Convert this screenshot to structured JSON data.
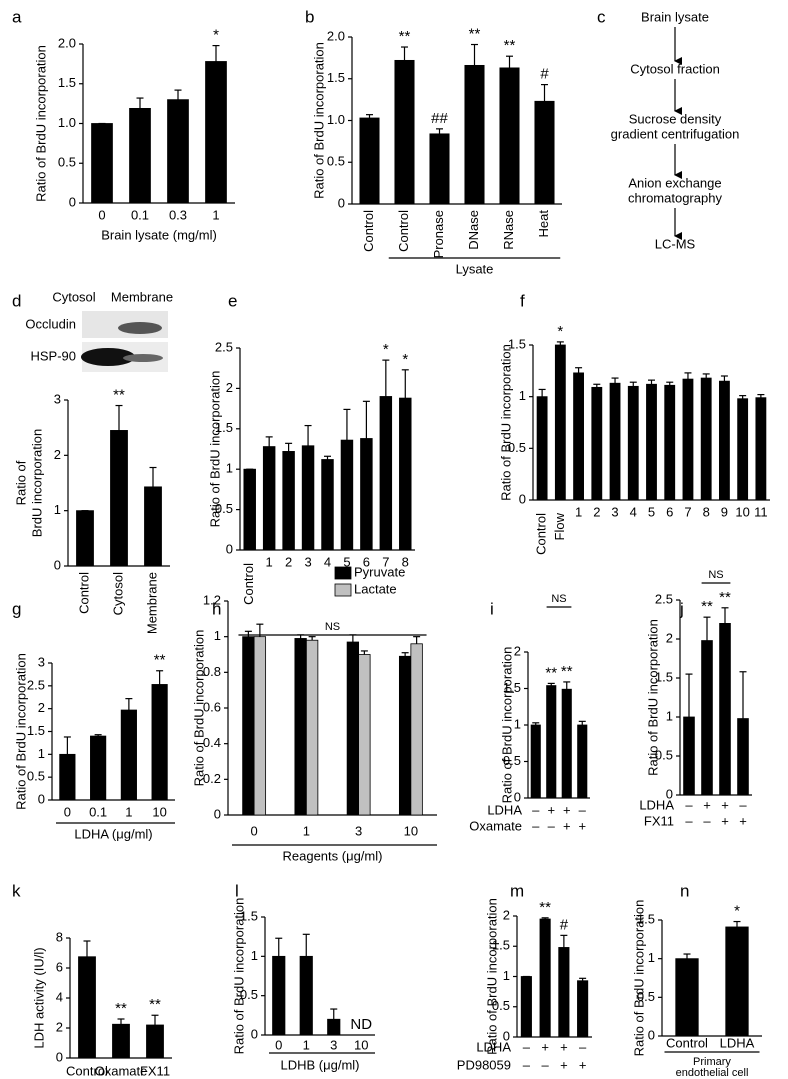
{
  "chart_data": [
    {
      "type": "bar",
      "panel": "a",
      "ylabel": "Ratio of BrdU incorporation",
      "xlabel": "Brain lysate (mg/ml)",
      "categories": [
        "0",
        "0.1",
        "0.3",
        "1"
      ],
      "values": [
        1.0,
        1.19,
        1.3,
        1.78
      ],
      "errors": [
        0,
        0.13,
        0.12,
        0.2
      ],
      "annotations": [
        null,
        null,
        null,
        "*"
      ],
      "color": "#000000",
      "ylim": [
        0,
        2
      ],
      "yticks": [
        0,
        0.5,
        {
          "value": 1,
          "label": "1.0"
        },
        1.5,
        {
          "value": 2,
          "label": "2.0"
        }
      ]
    },
    {
      "type": "bar",
      "panel": "b",
      "ylabel": "Ratio of BrdU incorporation",
      "group_label": "Lysate",
      "categories": [
        "Control",
        "Control",
        "Pronase",
        "DNase",
        "RNase",
        "Heat"
      ],
      "values": [
        1.03,
        1.72,
        0.84,
        1.66,
        1.63,
        1.23
      ],
      "errors": [
        0.04,
        0.16,
        0.06,
        0.25,
        0.14,
        0.2
      ],
      "annotations": [
        null,
        "**",
        "##",
        "**",
        "**",
        "#"
      ],
      "color": "#000000",
      "ylim": [
        0,
        2
      ],
      "yticks": [
        0,
        0.5,
        {
          "value": 1,
          "label": "1.0"
        },
        1.5,
        {
          "value": 2,
          "label": "2.0"
        }
      ]
    },
    {
      "type": "bar",
      "panel": "d",
      "blot": {
        "columns": [
          "Cytosol",
          "Membrane"
        ],
        "rows": [
          "Occludin",
          "HSP-90"
        ]
      },
      "ylabel": [
        "Ratio of",
        "BrdU incorporation"
      ],
      "categories": [
        "Control",
        "Cytosol",
        "Membrane"
      ],
      "values": [
        1.0,
        2.45,
        1.43
      ],
      "errors": [
        0,
        0.45,
        0.35
      ],
      "annotations": [
        null,
        "**",
        null
      ],
      "color": "#000000",
      "ylim": [
        0,
        3
      ],
      "yticks": [
        0,
        1,
        2,
        3
      ]
    },
    {
      "type": "bar",
      "panel": "e",
      "ylabel": "Ratio of BrdU incorporation",
      "categories": [
        "Control",
        "1",
        "2",
        "3",
        "4",
        "5",
        "6",
        "7",
        "8"
      ],
      "values": [
        1.0,
        1.28,
        1.22,
        1.29,
        1.12,
        1.36,
        1.38,
        1.9,
        1.88
      ],
      "errors": [
        0,
        0.12,
        0.1,
        0.25,
        0.04,
        0.38,
        0.46,
        0.45,
        0.35
      ],
      "annotations": [
        null,
        null,
        null,
        null,
        null,
        null,
        null,
        "*",
        "*"
      ],
      "color": "#000000",
      "ylim": [
        0,
        2.5
      ],
      "yticks": [
        0,
        0.5,
        1,
        1.5,
        2,
        2.5
      ]
    },
    {
      "type": "bar",
      "panel": "f",
      "ylabel": "Ratio of BrdU incorporation",
      "categories": [
        "Control",
        "Flow",
        "1",
        "2",
        "3",
        "4",
        "5",
        "6",
        "7",
        "8",
        "9",
        "10",
        "11"
      ],
      "values": [
        1.0,
        1.5,
        1.23,
        1.09,
        1.13,
        1.1,
        1.12,
        1.11,
        1.17,
        1.18,
        1.15,
        0.98,
        0.99
      ],
      "errors": [
        0.07,
        0.03,
        0.05,
        0.03,
        0.05,
        0.04,
        0.04,
        0.03,
        0.06,
        0.04,
        0.05,
        0.03,
        0.03
      ],
      "annotations": [
        null,
        "*",
        null,
        null,
        null,
        null,
        null,
        null,
        null,
        null,
        null,
        null,
        null
      ],
      "color": "#000000",
      "ylim": [
        0,
        1.5
      ],
      "yticks": [
        0,
        0.5,
        1,
        1.5
      ]
    },
    {
      "type": "bar",
      "panel": "g",
      "ylabel": "Ratio of BrdU incorporation",
      "xlabel": "LDHA (μg/ml)",
      "categories": [
        "0",
        "0.1",
        "1",
        "10"
      ],
      "values": [
        1.0,
        1.4,
        1.97,
        2.53
      ],
      "errors": [
        0.38,
        0.03,
        0.25,
        0.3
      ],
      "annotations": [
        null,
        null,
        null,
        "**"
      ],
      "color": "#000000",
      "ylim": [
        0,
        3
      ],
      "yticks": [
        0,
        0.5,
        1,
        1.5,
        2,
        2.5,
        3
      ]
    },
    {
      "type": "grouped-bar",
      "panel": "h",
      "ylabel": "Ratio of BrdU incorporation",
      "xlabel": "Reagents (μg/ml)",
      "ns_label": "NS",
      "categories": [
        "0",
        "1",
        "3",
        "10"
      ],
      "series": [
        {
          "name": "Pyruvate",
          "color": "#000000",
          "values": [
            1.0,
            0.99,
            0.97,
            0.89
          ],
          "errors": [
            0.03,
            0.02,
            0.04,
            0.02
          ]
        },
        {
          "name": "Lactate",
          "color": "#c0c0c0",
          "values": [
            1.0,
            0.98,
            0.9,
            0.96
          ],
          "errors": [
            0.07,
            0.02,
            0.02,
            0.04
          ]
        }
      ],
      "ylim": [
        0,
        1.2
      ],
      "yticks": [
        0,
        0.2,
        0.4,
        0.6,
        0.8,
        1,
        1.2
      ]
    },
    {
      "type": "bar",
      "panel": "i",
      "ylabel": "Ratio of BrdU incorporation",
      "ns_label": "NS",
      "conditions": [
        {
          "name": "LDHA",
          "marks": [
            "–",
            "+",
            "+",
            "–"
          ]
        },
        {
          "name": "Oxamate",
          "marks": [
            "–",
            "–",
            "+",
            "+"
          ]
        }
      ],
      "values": [
        1.0,
        1.54,
        1.49,
        1.0
      ],
      "errors": [
        0.03,
        0.03,
        0.1,
        0.05
      ],
      "annotations": [
        null,
        "**",
        "**",
        null
      ],
      "color": "#000000",
      "ylim": [
        0,
        2
      ],
      "yticks": [
        0,
        0.5,
        1,
        1.5,
        2
      ]
    },
    {
      "type": "bar",
      "panel": "j",
      "ylabel": "Ratio of BrdU incorporation",
      "ns_label": "NS",
      "conditions": [
        {
          "name": "LDHA",
          "marks": [
            "–",
            "+",
            "+",
            "–"
          ]
        },
        {
          "name": "FX11",
          "marks": [
            "–",
            "–",
            "+",
            "+"
          ]
        }
      ],
      "values": [
        1.0,
        1.98,
        2.2,
        0.98
      ],
      "errors": [
        0.55,
        0.3,
        0.2,
        0.6
      ],
      "annotations": [
        null,
        "**",
        "**",
        null
      ],
      "color": "#000000",
      "ylim": [
        0,
        2.5
      ],
      "yticks": [
        0,
        0.5,
        1,
        1.5,
        2,
        2.5
      ]
    },
    {
      "type": "bar",
      "panel": "k",
      "ylabel": "LDH activity (IU/l)",
      "categories": [
        "Control",
        "Oxamate",
        "FX11"
      ],
      "values": [
        6.75,
        2.25,
        2.2
      ],
      "errors": [
        1.05,
        0.35,
        0.65
      ],
      "annotations": [
        null,
        "**",
        "**"
      ],
      "color": "#000000",
      "ylim": [
        0,
        8
      ],
      "yticks": [
        0,
        2,
        4,
        6,
        8
      ]
    },
    {
      "type": "bar",
      "panel": "l",
      "ylabel": "Ratio of BrdU incorporation",
      "xlabel": "LDHB (μg/ml)",
      "categories": [
        "0",
        "1",
        "3",
        "10"
      ],
      "values": [
        1.0,
        1.0,
        0.2,
        null
      ],
      "errors": [
        0.23,
        0.28,
        0.13,
        null
      ],
      "annotations": [
        null,
        null,
        null,
        "ND"
      ],
      "color": "#000000",
      "ylim": [
        0,
        1.5
      ],
      "yticks": [
        0,
        0.5,
        1,
        1.5
      ]
    },
    {
      "type": "bar",
      "panel": "m",
      "ylabel": "Ratio of BrdU incorporation",
      "conditions": [
        {
          "name": "LDHA",
          "marks": [
            "–",
            "+",
            "+",
            "–"
          ]
        },
        {
          "name": "PD98059",
          "marks": [
            "–",
            "–",
            "+",
            "+"
          ]
        }
      ],
      "values": [
        1.0,
        1.95,
        1.48,
        0.93
      ],
      "errors": [
        0,
        0.02,
        0.2,
        0.04
      ],
      "annotations": [
        null,
        "**",
        "#",
        null
      ],
      "color": "#000000",
      "ylim": [
        0,
        2
      ],
      "yticks": [
        0,
        0.5,
        1,
        1.5,
        2
      ]
    },
    {
      "type": "bar",
      "panel": "n",
      "ylabel": "Ratio of BrdU incorporation",
      "group_label": [
        "Primary",
        "endothelial cell"
      ],
      "categories": [
        "Control",
        "LDHA"
      ],
      "values": [
        1.0,
        1.41
      ],
      "errors": [
        0.06,
        0.07
      ],
      "annotations": [
        null,
        "*"
      ],
      "color": "#000000",
      "ylim": [
        0,
        1.5
      ],
      "yticks": [
        0,
        0.5,
        1,
        1.5
      ]
    }
  ],
  "diagram": {
    "panel": "c",
    "nodes": [
      [
        "Brain lysate"
      ],
      [
        "Cytosol fraction"
      ],
      [
        "Sucrose density",
        "gradient centrifugation"
      ],
      [
        "Anion exchange",
        "chromatography"
      ],
      [
        "LC-MS"
      ]
    ]
  }
}
